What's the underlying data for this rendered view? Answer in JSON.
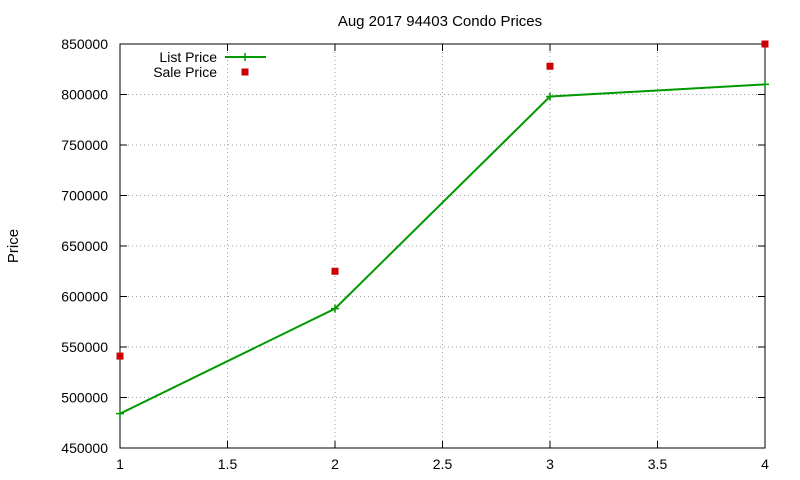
{
  "chart_data": {
    "type": "line",
    "title": "Aug 2017 94403 Condo Prices",
    "xlabel": "",
    "ylabel": "Price",
    "xlim": [
      1,
      4
    ],
    "ylim": [
      450000,
      850000
    ],
    "xticks": [
      1,
      1.5,
      2,
      2.5,
      3,
      3.5,
      4
    ],
    "yticks": [
      450000,
      500000,
      550000,
      600000,
      650000,
      700000,
      750000,
      800000,
      850000
    ],
    "grid": true,
    "legend_position": "top-left",
    "series": [
      {
        "name": "List Price",
        "style": "line-with-plus-markers",
        "color": "#009900",
        "x": [
          1,
          2,
          3,
          4
        ],
        "y": [
          484000,
          588000,
          798000,
          810000
        ]
      },
      {
        "name": "Sale Price",
        "style": "square-markers",
        "color": "#cc0000",
        "x": [
          1,
          2,
          3,
          4
        ],
        "y": [
          541000,
          625000,
          828000,
          850000
        ]
      }
    ]
  }
}
